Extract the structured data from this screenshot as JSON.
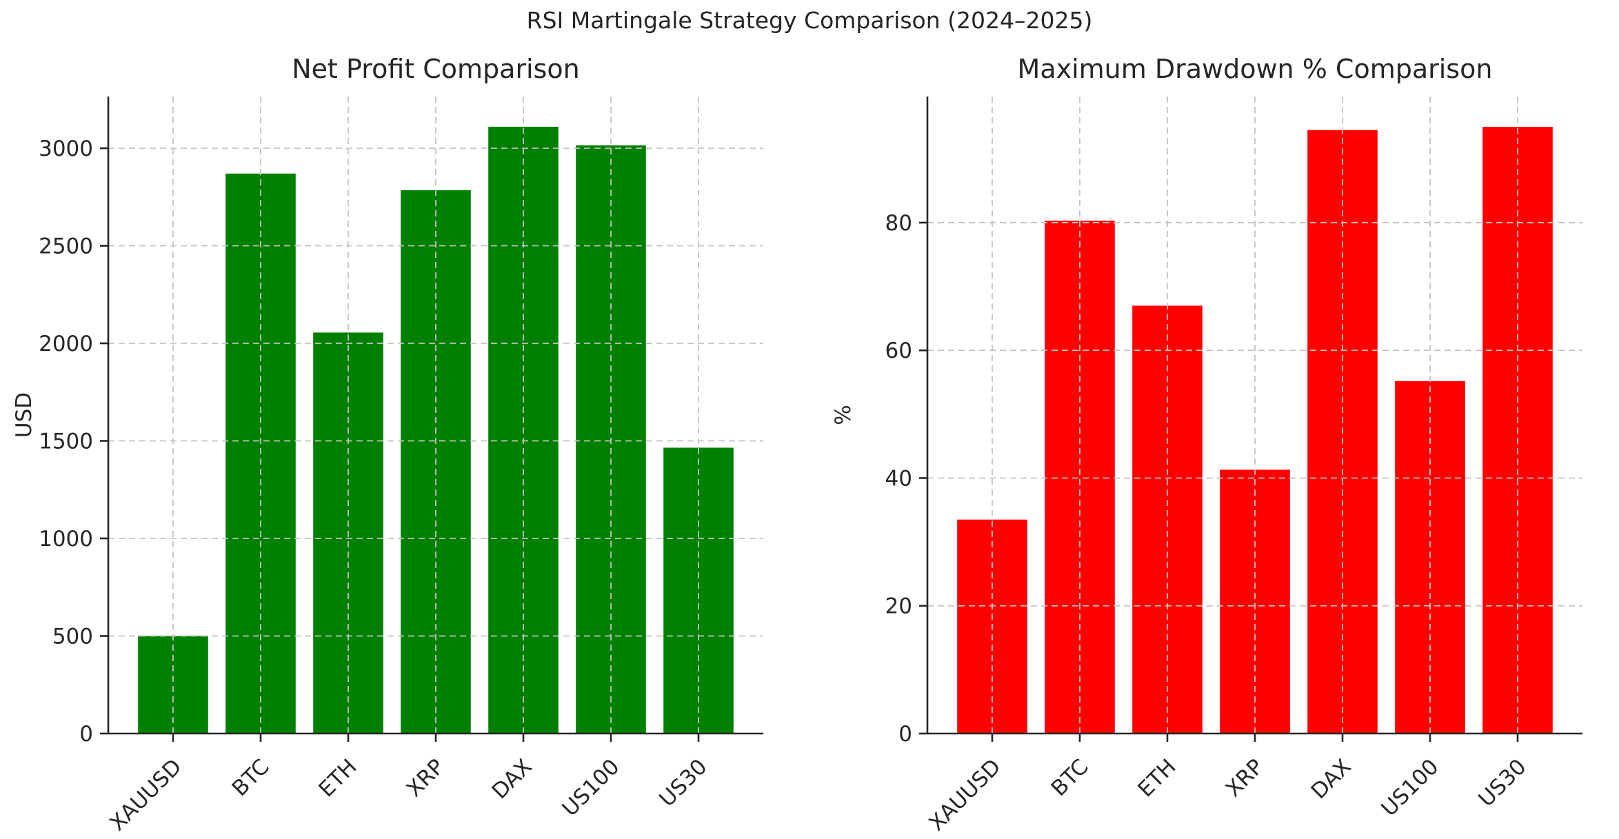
{
  "figure": {
    "suptitle": "RSI Martingale Strategy Comparison (2024–2025)"
  },
  "chart_data": [
    {
      "type": "bar",
      "title": "Net Profit Comparison",
      "xlabel": "",
      "ylabel": "USD",
      "categories": [
        "XAUUSD",
        "BTC",
        "ETH",
        "XRP",
        "DAX",
        "US100",
        "US30"
      ],
      "values": [
        500,
        2870,
        2055,
        2785,
        3110,
        3015,
        1465
      ],
      "bar_color": "#008000",
      "yticks": [
        0,
        500,
        1000,
        1500,
        2000,
        2500,
        3000
      ],
      "ylim": [
        0,
        3265
      ],
      "grid": "dashed-both-axes",
      "legend": "none"
    },
    {
      "type": "bar",
      "title": "Maximum Drawdown % Comparison",
      "xlabel": "",
      "ylabel": "%",
      "categories": [
        "XAUUSD",
        "BTC",
        "ETH",
        "XRP",
        "DAX",
        "US100",
        "US30"
      ],
      "values": [
        33.5,
        80.3,
        67.0,
        41.3,
        94.5,
        55.2,
        95.0
      ],
      "bar_color": "#ff0000",
      "yticks": [
        0,
        20,
        40,
        60,
        80
      ],
      "ylim": [
        0,
        99.75
      ],
      "grid": "dashed-both-axes",
      "legend": "none"
    }
  ],
  "style": {
    "background": "#ffffff",
    "grid_color": "#c3c3c3",
    "spine_color": "#262626",
    "text_color": "#262626"
  }
}
